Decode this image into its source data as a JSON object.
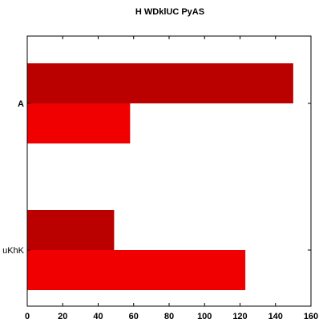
{
  "chart_data": {
    "type": "bar",
    "orientation": "horizontal",
    "title": "H WDklUC PyAS",
    "xlabel": "",
    "ylabel": "",
    "categories": [
      "A",
      "uKhK"
    ],
    "category_label_bold": [
      true,
      false
    ],
    "series": [
      {
        "color": "#bb0000",
        "values": [
          150,
          49
        ]
      },
      {
        "color": "#f00000",
        "values": [
          58,
          123
        ]
      }
    ],
    "xlim": [
      0,
      160
    ],
    "xticks": [
      0,
      20,
      40,
      60,
      80,
      100,
      120,
      140,
      160
    ],
    "grid": false,
    "legend": "none"
  }
}
